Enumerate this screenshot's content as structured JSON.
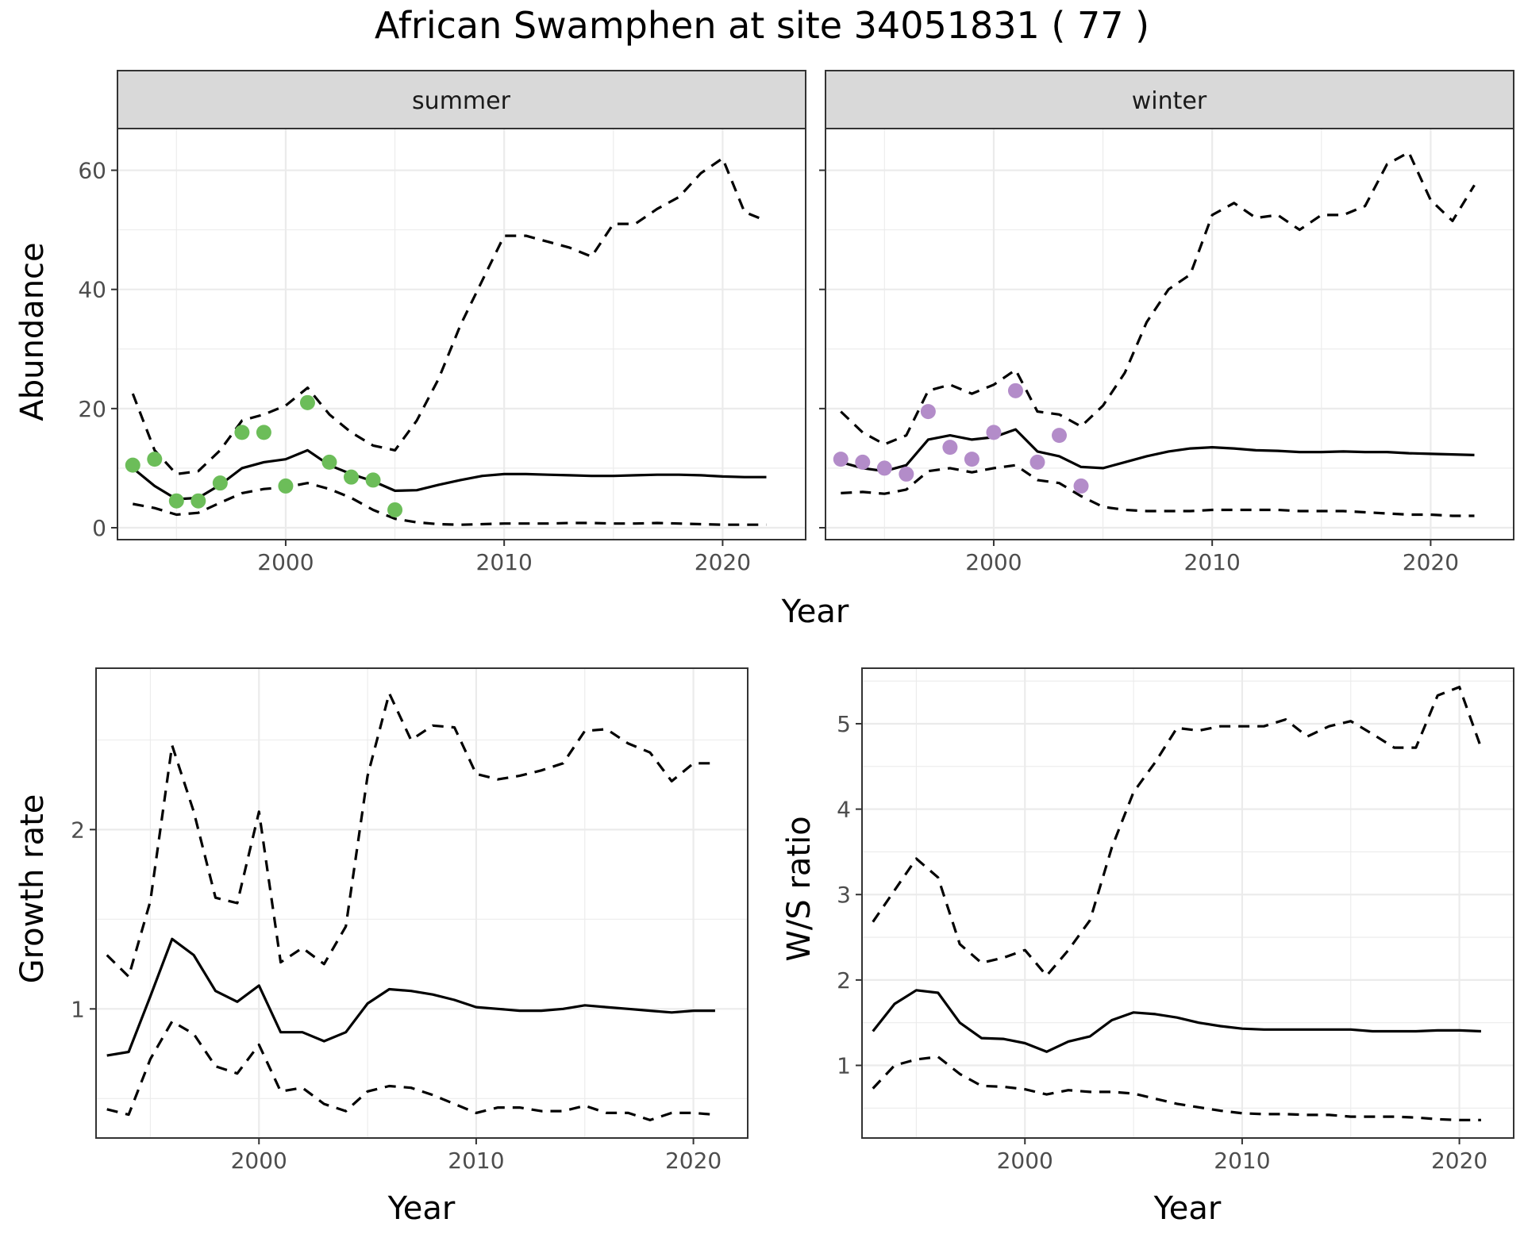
{
  "title": "African Swamphen at site 34051831 ( 77 )",
  "colors": {
    "summer_points": "#6cbd59",
    "winter_points": "#b38cc9",
    "lines": "#000000"
  },
  "chart_data": [
    {
      "type": "line",
      "panel": "summer",
      "xlabel": "Year",
      "ylabel": "Abundance",
      "xlim": [
        1992.3,
        2023.8
      ],
      "ylim": [
        -2,
        67
      ],
      "xticks": [
        2000,
        2010,
        2020
      ],
      "yticks": [
        0,
        20,
        40,
        60
      ],
      "series": [
        {
          "style": "solid",
          "x": [
            1993,
            1994,
            1995,
            1996,
            1997,
            1998,
            1999,
            2000,
            2001,
            2002,
            2003,
            2004,
            2005,
            2006,
            2007,
            2008,
            2009,
            2010,
            2011,
            2012,
            2013,
            2014,
            2015,
            2016,
            2017,
            2018,
            2019,
            2020,
            2021,
            2022
          ],
          "values": [
            10,
            7,
            4.8,
            5,
            7.2,
            10,
            11,
            11.5,
            13,
            10.5,
            9,
            7.8,
            6.2,
            6.3,
            7.2,
            8,
            8.7,
            9,
            9,
            8.9,
            8.8,
            8.7,
            8.7,
            8.8,
            8.9,
            8.9,
            8.8,
            8.6,
            8.5,
            8.5
          ]
        },
        {
          "style": "dashed",
          "x": [
            1993,
            1994,
            1995,
            1996,
            1997,
            1998,
            1999,
            2000,
            2001,
            2002,
            2003,
            2004,
            2005,
            2006,
            2007,
            2008,
            2009,
            2010,
            2011,
            2012,
            2013,
            2014,
            2015,
            2016,
            2017,
            2018,
            2019,
            2020,
            2021,
            2022
          ],
          "values": [
            22.5,
            13,
            9,
            9.5,
            13,
            18,
            19,
            20.5,
            23.5,
            19,
            16,
            13.8,
            13,
            18,
            25,
            34,
            41.5,
            49,
            49,
            48,
            47,
            45.5,
            51,
            51,
            53.5,
            55.5,
            59.5,
            62,
            53,
            51.5
          ]
        },
        {
          "style": "dashed",
          "x": [
            1993,
            1994,
            1995,
            1996,
            1997,
            1998,
            1999,
            2000,
            2001,
            2002,
            2003,
            2004,
            2005,
            2006,
            2007,
            2008,
            2009,
            2010,
            2011,
            2012,
            2013,
            2014,
            2015,
            2016,
            2017,
            2018,
            2019,
            2020,
            2021,
            2022
          ],
          "values": [
            4,
            3.3,
            2.2,
            2.5,
            4.2,
            5.8,
            6.5,
            6.8,
            7.5,
            6.5,
            5,
            3,
            1.5,
            0.9,
            0.6,
            0.5,
            0.6,
            0.7,
            0.7,
            0.7,
            0.8,
            0.8,
            0.7,
            0.7,
            0.8,
            0.7,
            0.6,
            0.5,
            0.5,
            0.5
          ]
        }
      ],
      "points": {
        "x": [
          1993,
          1994,
          1995,
          1996,
          1997,
          1998,
          1999,
          2000,
          2001,
          2002,
          2003,
          2004,
          2005
        ],
        "values": [
          10.5,
          11.5,
          4.5,
          4.5,
          7.5,
          16,
          16,
          7,
          21,
          11,
          8.5,
          8,
          3
        ]
      }
    },
    {
      "type": "line",
      "panel": "winter",
      "xlabel": "Year",
      "ylabel": "Abundance",
      "xlim": [
        1992.3,
        2023.8
      ],
      "ylim": [
        -2,
        67
      ],
      "xticks": [
        2000,
        2010,
        2020
      ],
      "yticks": [
        0,
        20,
        40,
        60
      ],
      "series": [
        {
          "style": "solid",
          "x": [
            1993,
            1994,
            1995,
            1996,
            1997,
            1998,
            1999,
            2000,
            2001,
            2002,
            2003,
            2004,
            2005,
            2006,
            2007,
            2008,
            2009,
            2010,
            2011,
            2012,
            2013,
            2014,
            2015,
            2016,
            2017,
            2018,
            2019,
            2020,
            2021,
            2022
          ],
          "values": [
            11,
            10,
            9.5,
            10.5,
            14.8,
            15.5,
            14.8,
            15.2,
            16.5,
            12.8,
            12,
            10.2,
            10,
            11,
            12,
            12.8,
            13.3,
            13.5,
            13.3,
            13,
            12.9,
            12.7,
            12.7,
            12.8,
            12.7,
            12.7,
            12.5,
            12.4,
            12.3,
            12.2
          ]
        },
        {
          "style": "dashed",
          "x": [
            1993,
            1994,
            1995,
            1996,
            1997,
            1998,
            1999,
            2000,
            2001,
            2002,
            2003,
            2004,
            2005,
            2006,
            2007,
            2008,
            2009,
            2010,
            2011,
            2012,
            2013,
            2014,
            2015,
            2016,
            2017,
            2018,
            2019,
            2020,
            2021,
            2022
          ],
          "values": [
            19.5,
            16,
            14,
            15.5,
            23,
            24,
            22.5,
            24,
            26.5,
            19.5,
            19,
            17,
            20.5,
            26,
            34.5,
            40,
            42.5,
            52.5,
            54.5,
            52,
            52.5,
            50,
            52.5,
            52.5,
            54,
            61,
            63,
            55,
            51.5,
            57.5
          ]
        },
        {
          "style": "dashed",
          "x": [
            1993,
            1994,
            1995,
            1996,
            1997,
            1998,
            1999,
            2000,
            2001,
            2002,
            2003,
            2004,
            2005,
            2006,
            2007,
            2008,
            2009,
            2010,
            2011,
            2012,
            2013,
            2014,
            2015,
            2016,
            2017,
            2018,
            2019,
            2020,
            2021,
            2022
          ],
          "values": [
            5.8,
            6,
            5.7,
            6.4,
            9.5,
            10,
            9.3,
            10,
            10.5,
            8,
            7.5,
            5.3,
            3.5,
            3,
            2.8,
            2.8,
            2.8,
            3,
            3,
            3,
            3,
            2.8,
            2.8,
            2.8,
            2.6,
            2.4,
            2.2,
            2.2,
            2,
            2
          ]
        }
      ],
      "points": {
        "x": [
          1993,
          1994,
          1995,
          1996,
          1997,
          1998,
          1999,
          2000,
          2001,
          2002,
          2003,
          2004
        ],
        "values": [
          11.5,
          11,
          10,
          9,
          19.5,
          13.5,
          11.5,
          16,
          23,
          11,
          15.5,
          7
        ]
      }
    },
    {
      "type": "line",
      "xlabel": "Year",
      "ylabel": "Growth rate",
      "xlim": [
        1992.5,
        2022.5
      ],
      "ylim": [
        0.28,
        2.9
      ],
      "xticks": [
        2000,
        2010,
        2020
      ],
      "yticks": [
        1,
        2
      ],
      "series": [
        {
          "style": "solid",
          "x": [
            1993,
            1994,
            1995,
            1996,
            1997,
            1998,
            1999,
            2000,
            2001,
            2002,
            2003,
            2004,
            2005,
            2006,
            2007,
            2008,
            2009,
            2010,
            2011,
            2012,
            2013,
            2014,
            2015,
            2016,
            2017,
            2018,
            2019,
            2020,
            2021
          ],
          "values": [
            0.74,
            0.76,
            1.07,
            1.39,
            1.3,
            1.1,
            1.04,
            1.13,
            0.87,
            0.87,
            0.82,
            0.87,
            1.03,
            1.11,
            1.1,
            1.08,
            1.05,
            1.01,
            1,
            0.99,
            0.99,
            1,
            1.02,
            1.01,
            1,
            0.99,
            0.98,
            0.99,
            0.99
          ]
        },
        {
          "style": "dashed",
          "x": [
            1993,
            1994,
            1995,
            1996,
            1997,
            1998,
            1999,
            2000,
            2001,
            2002,
            2003,
            2004,
            2005,
            2006,
            2007,
            2008,
            2009,
            2010,
            2011,
            2012,
            2013,
            2014,
            2015,
            2016,
            2017,
            2018,
            2019,
            2020,
            2021
          ],
          "values": [
            1.3,
            1.18,
            1.6,
            2.47,
            2.1,
            1.62,
            1.59,
            2.1,
            1.26,
            1.34,
            1.25,
            1.46,
            2.3,
            2.76,
            2.5,
            2.58,
            2.57,
            2.31,
            2.28,
            2.3,
            2.33,
            2.37,
            2.55,
            2.56,
            2.48,
            2.43,
            2.27,
            2.37,
            2.37
          ]
        },
        {
          "style": "dashed",
          "x": [
            1993,
            1994,
            1995,
            1996,
            1997,
            1998,
            1999,
            2000,
            2001,
            2002,
            2003,
            2004,
            2005,
            2006,
            2007,
            2008,
            2009,
            2010,
            2011,
            2012,
            2013,
            2014,
            2015,
            2016,
            2017,
            2018,
            2019,
            2020,
            2021
          ],
          "values": [
            0.44,
            0.41,
            0.72,
            0.93,
            0.86,
            0.68,
            0.64,
            0.8,
            0.54,
            0.56,
            0.47,
            0.43,
            0.54,
            0.57,
            0.56,
            0.52,
            0.47,
            0.42,
            0.45,
            0.45,
            0.43,
            0.43,
            0.46,
            0.42,
            0.42,
            0.38,
            0.42,
            0.42,
            0.41
          ]
        }
      ]
    },
    {
      "type": "line",
      "xlabel": "Year",
      "ylabel": "W/S ratio",
      "xlim": [
        1992.5,
        2022.5
      ],
      "ylim": [
        0.15,
        5.65
      ],
      "xticks": [
        2000,
        2010,
        2020
      ],
      "yticks": [
        1,
        2,
        3,
        4,
        5
      ],
      "series": [
        {
          "style": "solid",
          "x": [
            1993,
            1994,
            1995,
            1996,
            1997,
            1998,
            1999,
            2000,
            2001,
            2002,
            2003,
            2004,
            2005,
            2006,
            2007,
            2008,
            2009,
            2010,
            2011,
            2012,
            2013,
            2014,
            2015,
            2016,
            2017,
            2018,
            2019,
            2020,
            2021
          ],
          "values": [
            1.4,
            1.72,
            1.88,
            1.85,
            1.5,
            1.32,
            1.31,
            1.26,
            1.16,
            1.28,
            1.34,
            1.53,
            1.62,
            1.6,
            1.56,
            1.5,
            1.46,
            1.43,
            1.42,
            1.42,
            1.42,
            1.42,
            1.42,
            1.4,
            1.4,
            1.4,
            1.41,
            1.41,
            1.4
          ]
        },
        {
          "style": "dashed",
          "x": [
            1993,
            1994,
            1995,
            1996,
            1997,
            1998,
            1999,
            2000,
            2001,
            2002,
            2003,
            2004,
            2005,
            2006,
            2007,
            2008,
            2009,
            2010,
            2011,
            2012,
            2013,
            2014,
            2015,
            2016,
            2017,
            2018,
            2019,
            2020,
            2021
          ],
          "values": [
            2.68,
            3.05,
            3.42,
            3.2,
            2.42,
            2.2,
            2.26,
            2.35,
            2.05,
            2.35,
            2.7,
            3.55,
            4.2,
            4.55,
            4.95,
            4.92,
            4.97,
            4.97,
            4.97,
            5.05,
            4.85,
            4.97,
            5.03,
            4.88,
            4.72,
            4.72,
            5.33,
            5.43,
            4.72
          ]
        },
        {
          "style": "dashed",
          "x": [
            1993,
            1994,
            1995,
            1996,
            1997,
            1998,
            1999,
            2000,
            2001,
            2002,
            2003,
            2004,
            2005,
            2006,
            2007,
            2008,
            2009,
            2010,
            2011,
            2012,
            2013,
            2014,
            2015,
            2016,
            2017,
            2018,
            2019,
            2020,
            2021
          ],
          "values": [
            0.73,
            1,
            1.07,
            1.1,
            0.9,
            0.76,
            0.75,
            0.72,
            0.66,
            0.71,
            0.69,
            0.69,
            0.67,
            0.61,
            0.55,
            0.51,
            0.47,
            0.44,
            0.43,
            0.43,
            0.42,
            0.42,
            0.4,
            0.4,
            0.4,
            0.39,
            0.37,
            0.36,
            0.36
          ]
        }
      ]
    }
  ],
  "panels": {
    "summer_label": "summer",
    "winter_label": "winter",
    "top_xlabel": "Year",
    "top_ylabel": "Abundance",
    "growth_xlabel": "Year",
    "growth_ylabel": "Growth rate",
    "ratio_xlabel": "Year",
    "ratio_ylabel": "W/S ratio"
  }
}
